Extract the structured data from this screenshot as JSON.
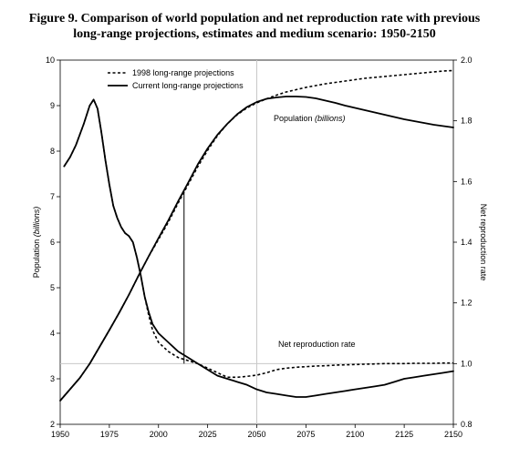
{
  "title_line1": "Figure 9. Comparison of world population and net reproduction rate with previous",
  "title_line2": "long-range projections, estimates and medium scenario: 1950-2150",
  "chart_data": {
    "type": "line",
    "title": "Figure 9. Comparison of world population and net reproduction rate with previous long-range projections, estimates and medium scenario: 1950-2150",
    "xlim": [
      1950,
      2150
    ],
    "x_ticks": [
      "1950",
      "1975",
      "2000",
      "2025",
      "2050",
      "2075",
      "2100",
      "2125",
      "2150"
    ],
    "ylabel_left": "Population (billions)",
    "ylim_left": [
      2,
      10
    ],
    "y_ticks_left": [
      "2",
      "3",
      "4",
      "5",
      "6",
      "7",
      "8",
      "9",
      "10"
    ],
    "ylabel_right": "Net reproduction rate",
    "ylim_right": [
      0.8,
      2.0
    ],
    "y_ticks_right": [
      "0.8",
      "1.0",
      "1.2",
      "1.4",
      "1.6",
      "1.8",
      "2.0"
    ],
    "grid": false,
    "legend": {
      "position": "top-left",
      "entries": [
        {
          "name": "1998 long-range projections",
          "style": "dashed"
        },
        {
          "name": "Current long-range projections",
          "style": "solid"
        }
      ]
    },
    "annotations": {
      "population_label": "Population",
      "population_unit": "(billions)",
      "nrr_label": "Net reproduction rate"
    },
    "reference_lines": {
      "vertical_at_x": 2050,
      "horizontal_nrr": 1.0,
      "marker_year": 2013
    },
    "series": [
      {
        "name": "Current long-range projections",
        "measure": "Population",
        "axis": "left",
        "style": "solid",
        "x": [
          1950,
          1955,
          1960,
          1965,
          1970,
          1975,
          1980,
          1985,
          1990,
          1995,
          2000,
          2005,
          2010,
          2015,
          2020,
          2025,
          2030,
          2035,
          2040,
          2045,
          2050,
          2055,
          2060,
          2065,
          2070,
          2075,
          2080,
          2085,
          2090,
          2095,
          2100,
          2105,
          2110,
          2115,
          2120,
          2125,
          2130,
          2135,
          2140,
          2145,
          2150
        ],
        "values": [
          2.52,
          2.77,
          3.02,
          3.33,
          3.7,
          4.07,
          4.45,
          4.85,
          5.28,
          5.69,
          6.09,
          6.48,
          6.9,
          7.3,
          7.71,
          8.06,
          8.36,
          8.6,
          8.81,
          8.97,
          9.08,
          9.15,
          9.18,
          9.2,
          9.2,
          9.19,
          9.16,
          9.11,
          9.06,
          9.0,
          8.95,
          8.9,
          8.85,
          8.8,
          8.75,
          8.7,
          8.66,
          8.62,
          8.58,
          8.55,
          8.52
        ]
      },
      {
        "name": "1998 long-range projections",
        "measure": "Population",
        "axis": "left",
        "style": "dashed",
        "x": [
          1950,
          1955,
          1960,
          1965,
          1970,
          1975,
          1980,
          1985,
          1990,
          1995,
          2000,
          2005,
          2010,
          2015,
          2020,
          2025,
          2030,
          2035,
          2040,
          2045,
          2050,
          2055,
          2060,
          2065,
          2070,
          2075,
          2080,
          2085,
          2090,
          2095,
          2100,
          2105,
          2110,
          2115,
          2120,
          2125,
          2130,
          2135,
          2140,
          2145,
          2150
        ],
        "values": [
          2.52,
          2.77,
          3.02,
          3.33,
          3.7,
          4.07,
          4.45,
          4.85,
          5.28,
          5.69,
          6.06,
          6.44,
          6.86,
          7.26,
          7.66,
          8.02,
          8.34,
          8.6,
          8.8,
          8.95,
          9.06,
          9.15,
          9.23,
          9.3,
          9.35,
          9.4,
          9.44,
          9.48,
          9.51,
          9.54,
          9.57,
          9.6,
          9.62,
          9.64,
          9.66,
          9.68,
          9.7,
          9.72,
          9.74,
          9.76,
          9.77
        ]
      },
      {
        "name": "Current long-range projections",
        "measure": "Net reproduction rate",
        "axis": "right",
        "style": "solid",
        "x": [
          1952,
          1955,
          1958,
          1962,
          1965,
          1967,
          1969,
          1971,
          1973,
          1975,
          1977,
          1979,
          1981,
          1983,
          1985,
          1987,
          1989,
          1991,
          1993,
          1995,
          1997,
          2000,
          2005,
          2010,
          2015,
          2020,
          2025,
          2030,
          2035,
          2040,
          2045,
          2050,
          2055,
          2060,
          2065,
          2070,
          2075,
          2080,
          2085,
          2090,
          2095,
          2100,
          2105,
          2110,
          2115,
          2120,
          2125,
          2130,
          2135,
          2140,
          2145,
          2150
        ],
        "values": [
          1.65,
          1.68,
          1.72,
          1.79,
          1.85,
          1.87,
          1.84,
          1.76,
          1.67,
          1.59,
          1.52,
          1.48,
          1.45,
          1.43,
          1.42,
          1.4,
          1.35,
          1.29,
          1.22,
          1.17,
          1.13,
          1.1,
          1.07,
          1.04,
          1.02,
          1.0,
          0.98,
          0.96,
          0.95,
          0.94,
          0.93,
          0.915,
          0.905,
          0.9,
          0.895,
          0.89,
          0.89,
          0.895,
          0.9,
          0.905,
          0.91,
          0.915,
          0.92,
          0.925,
          0.93,
          0.94,
          0.95,
          0.955,
          0.96,
          0.965,
          0.97,
          0.975
        ]
      },
      {
        "name": "1998 long-range projections",
        "measure": "Net reproduction rate",
        "axis": "right",
        "style": "dashed",
        "x": [
          1952,
          1955,
          1958,
          1962,
          1965,
          1967,
          1969,
          1971,
          1973,
          1975,
          1977,
          1979,
          1981,
          1983,
          1985,
          1987,
          1989,
          1991,
          1993,
          1995,
          1997,
          2000,
          2005,
          2010,
          2015,
          2020,
          2025,
          2030,
          2035,
          2040,
          2045,
          2050,
          2055,
          2060,
          2065,
          2070,
          2075,
          2080,
          2085,
          2090,
          2095,
          2100,
          2105,
          2110,
          2115,
          2120,
          2125,
          2130,
          2135,
          2140,
          2145,
          2150
        ],
        "values": [
          1.65,
          1.68,
          1.72,
          1.79,
          1.85,
          1.87,
          1.84,
          1.76,
          1.67,
          1.59,
          1.52,
          1.48,
          1.45,
          1.43,
          1.42,
          1.4,
          1.35,
          1.29,
          1.22,
          1.16,
          1.11,
          1.07,
          1.04,
          1.02,
          1.01,
          1.0,
          0.985,
          0.97,
          0.955,
          0.955,
          0.958,
          0.962,
          0.97,
          0.98,
          0.985,
          0.988,
          0.99,
          0.992,
          0.993,
          0.995,
          0.996,
          0.997,
          0.998,
          0.999,
          1.0,
          1.0,
          1.0,
          1.001,
          1.001,
          1.001,
          1.002,
          1.002
        ]
      }
    ]
  }
}
